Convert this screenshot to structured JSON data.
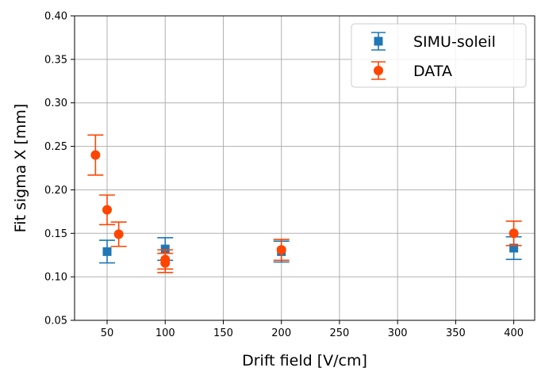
{
  "chart_data": {
    "type": "scatter",
    "title": "",
    "xlabel": "Drift field [V/cm]",
    "ylabel": "Fit sigma X [mm]",
    "xlim": [
      22,
      418
    ],
    "ylim": [
      0.05,
      0.4
    ],
    "xticks": [
      50,
      100,
      150,
      200,
      250,
      300,
      350,
      400
    ],
    "yticks": [
      0.05,
      0.1,
      0.15,
      0.2,
      0.25,
      0.3,
      0.35,
      0.4
    ],
    "xtick_labels": [
      "50",
      "100",
      "150",
      "200",
      "250",
      "300",
      "350",
      "400"
    ],
    "ytick_labels": [
      "0.05",
      "0.10",
      "0.15",
      "0.20",
      "0.25",
      "0.30",
      "0.35",
      "0.40"
    ],
    "grid": true,
    "legend_position": "top-right",
    "series": [
      {
        "name": "SIMU-soleil",
        "marker": "square",
        "color": "#1f77b4",
        "points": [
          {
            "x": 50,
            "y": 0.129,
            "err": 0.013
          },
          {
            "x": 100,
            "y": 0.132,
            "err": 0.013
          },
          {
            "x": 200,
            "y": 0.129,
            "err": 0.012
          },
          {
            "x": 400,
            "y": 0.133,
            "err": 0.013
          }
        ]
      },
      {
        "name": "DATA",
        "marker": "circle",
        "color": "#ff4500",
        "points": [
          {
            "x": 40,
            "y": 0.24,
            "err": 0.023
          },
          {
            "x": 50,
            "y": 0.177,
            "err": 0.017
          },
          {
            "x": 60,
            "y": 0.149,
            "err": 0.014
          },
          {
            "x": 100,
            "y": 0.12,
            "err": 0.011
          },
          {
            "x": 100,
            "y": 0.116,
            "err": 0.011
          },
          {
            "x": 200,
            "y": 0.131,
            "err": 0.012
          },
          {
            "x": 400,
            "y": 0.15,
            "err": 0.014
          }
        ]
      }
    ]
  }
}
